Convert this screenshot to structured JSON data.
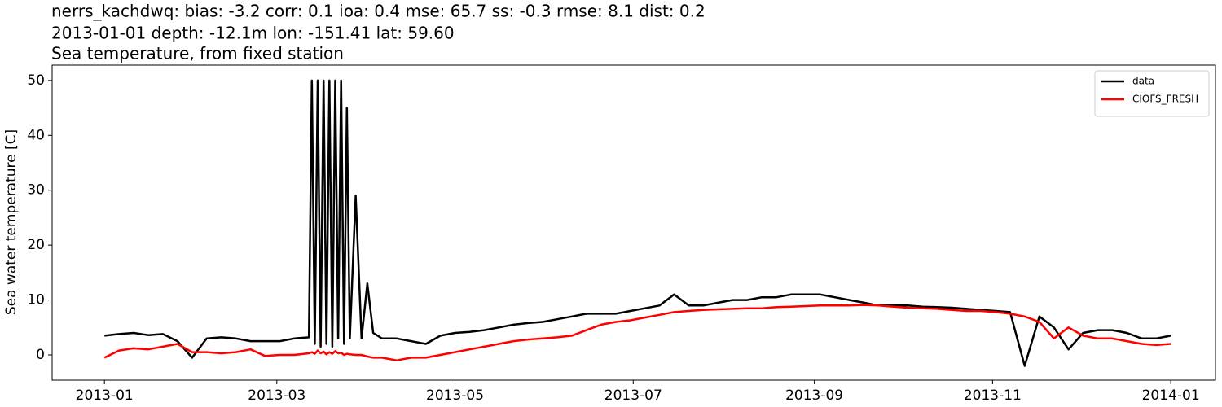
{
  "chart_data": {
    "type": "line",
    "title_lines": [
      "nerrs_kachdwq: bias: -3.2  corr: 0.1  ioa: 0.4  mse: 65.7  ss: -0.3  rmse: 8.1  dist: 0.2",
      "2013-01-01 depth: -12.1m lon: -151.41 lat: 59.60",
      "Sea temperature, from fixed station"
    ],
    "ylabel": "Sea water temperature [C]",
    "x": [
      0,
      5,
      10,
      15,
      20,
      25,
      30,
      35,
      40,
      45,
      50,
      55,
      60,
      65,
      70,
      71,
      72,
      73,
      74,
      75,
      76,
      77,
      78,
      79,
      80,
      81,
      82,
      83,
      84,
      86,
      88,
      90,
      92,
      95,
      100,
      105,
      110,
      115,
      120,
      125,
      130,
      135,
      140,
      145,
      150,
      155,
      160,
      165,
      170,
      175,
      180,
      185,
      190,
      195,
      200,
      205,
      210,
      215,
      220,
      225,
      230,
      235,
      240,
      245,
      250,
      255,
      260,
      265,
      270,
      275,
      280,
      285,
      290,
      295,
      300,
      305,
      310,
      315,
      320,
      325,
      330,
      335,
      340,
      345,
      350,
      355,
      360,
      365
    ],
    "series": [
      {
        "name": "data",
        "color": "#000000",
        "values": [
          3.5,
          3.8,
          4,
          3.6,
          3.8,
          2.5,
          -0.5,
          3,
          3.2,
          3,
          2.5,
          2.5,
          2.5,
          3,
          3.2,
          50,
          2,
          50,
          1.5,
          50,
          2,
          50,
          1.5,
          50,
          3,
          50,
          2,
          45,
          3,
          29,
          3,
          13,
          4,
          3,
          3,
          2.5,
          2,
          3.5,
          4,
          4.2,
          4.5,
          5,
          5.5,
          5.8,
          6,
          6.5,
          7,
          7.5,
          7.5,
          7.5,
          8,
          8.5,
          9,
          11,
          9,
          9,
          9.5,
          10,
          10,
          10.5,
          10.5,
          11,
          11,
          11,
          10.5,
          10,
          9.5,
          9,
          9,
          9,
          8.8,
          8.7,
          8.6,
          8.4,
          8.2,
          8,
          7.8,
          -2,
          7,
          5,
          1,
          4,
          4.5,
          4.5,
          4,
          3,
          3,
          3.5
        ]
      },
      {
        "name": "CIOFS_FRESH",
        "color": "#ff0000",
        "values": [
          -0.5,
          0.8,
          1.2,
          1,
          1.5,
          2,
          0.5,
          0.5,
          0.3,
          0.5,
          1,
          -0.2,
          0,
          0,
          0.3,
          0.5,
          0.2,
          0.8,
          0.3,
          0.6,
          0.1,
          0.5,
          0.2,
          0.7,
          0.3,
          0.4,
          0,
          0.2,
          0.1,
          0,
          0,
          -0.3,
          -0.5,
          -0.5,
          -1,
          -0.5,
          -0.5,
          0,
          0.5,
          1,
          1.5,
          2,
          2.5,
          2.8,
          3,
          3.2,
          3.5,
          4.5,
          5.5,
          6,
          6.3,
          6.8,
          7.3,
          7.8,
          8,
          8.2,
          8.3,
          8.4,
          8.5,
          8.5,
          8.7,
          8.8,
          8.9,
          9,
          9,
          9,
          9.1,
          9,
          8.8,
          8.6,
          8.5,
          8.4,
          8.2,
          8,
          8,
          7.8,
          7.5,
          7,
          6,
          3,
          5,
          3.5,
          3,
          3,
          2.5,
          2,
          1.8,
          2
        ]
      }
    ],
    "xlim": [
      -17.9,
      380.3
    ],
    "xticks": [
      {
        "value": 0,
        "label": "2013-01"
      },
      {
        "value": 59,
        "label": "2013-03"
      },
      {
        "value": 120,
        "label": "2013-05"
      },
      {
        "value": 181,
        "label": "2013-07"
      },
      {
        "value": 243,
        "label": "2013-09"
      },
      {
        "value": 304,
        "label": "2013-11"
      },
      {
        "value": 365,
        "label": "2014-01"
      }
    ],
    "ylim": [
      -4.6,
      52.8
    ],
    "yticks": [
      0,
      10,
      20,
      30,
      40,
      50
    ],
    "legend": "upper right"
  }
}
